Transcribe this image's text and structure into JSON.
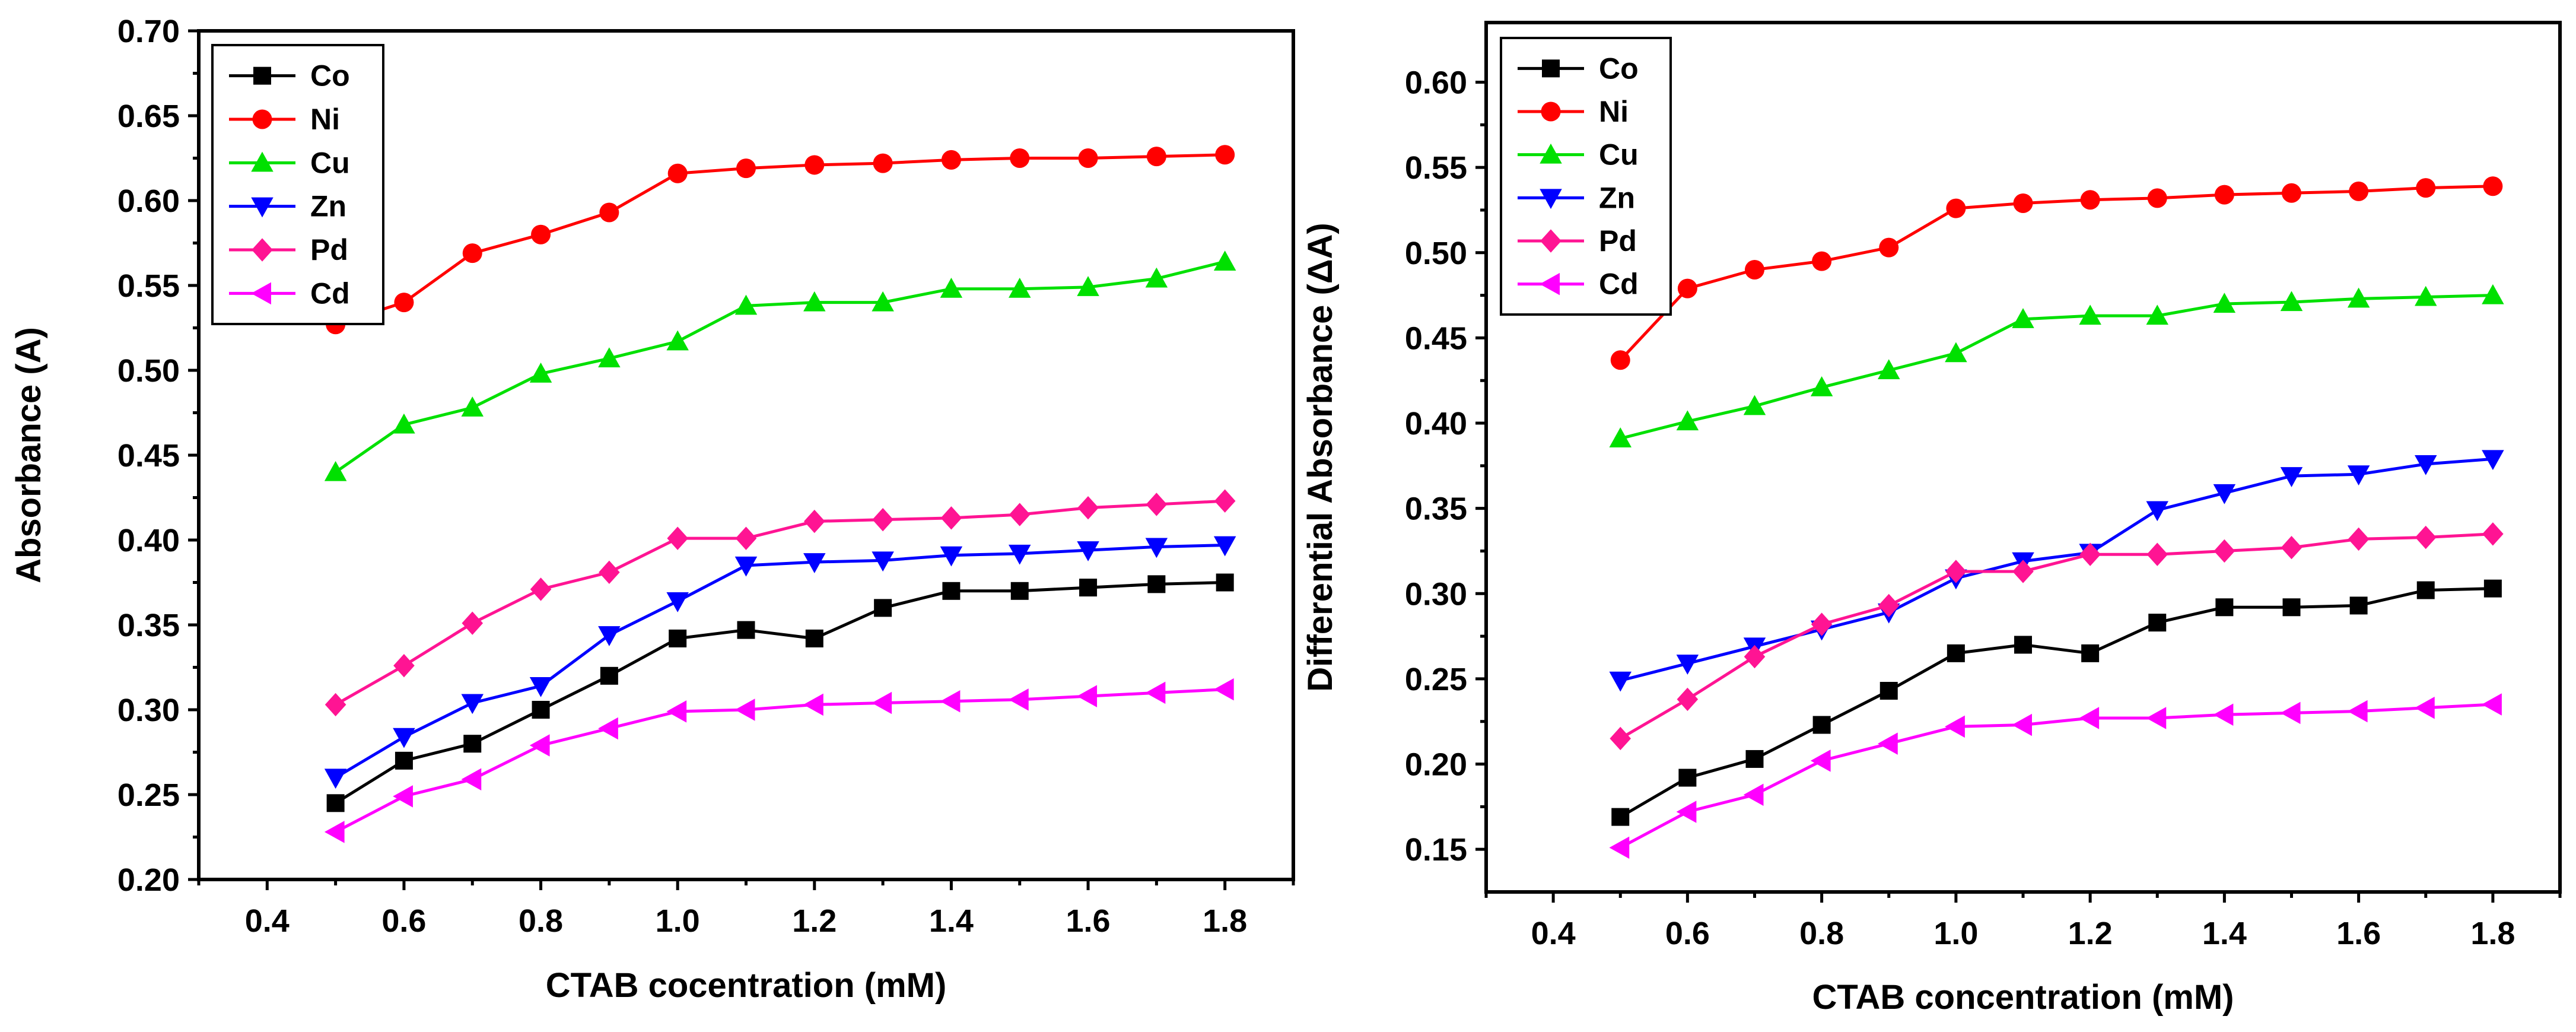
{
  "chart_data": [
    {
      "type": "line",
      "title": "",
      "xlabel": "CTAB cocentration (mM)",
      "ylabel": "Absorbance (A)",
      "xlim": [
        0.3,
        1.9
      ],
      "ylim": [
        0.2,
        0.7
      ],
      "xticks": [
        "0.4",
        "0.6",
        "0.8",
        "1.0",
        "1.2",
        "1.4",
        "1.6",
        "1.8"
      ],
      "yticks": [
        "0.20",
        "0.25",
        "0.30",
        "0.35",
        "0.40",
        "0.45",
        "0.50",
        "0.55",
        "0.60",
        "0.65",
        "0.70"
      ],
      "legend_position": "top-left",
      "x": [
        0.5,
        0.6,
        0.7,
        0.8,
        0.9,
        1.0,
        1.1,
        1.2,
        1.3,
        1.4,
        1.5,
        1.6,
        1.7,
        1.8
      ],
      "series": [
        {
          "name": "Co",
          "color": "#000000",
          "marker": "square",
          "values": [
            0.245,
            0.27,
            0.28,
            0.3,
            0.32,
            0.342,
            0.347,
            0.342,
            0.36,
            0.37,
            0.37,
            0.372,
            0.374,
            0.375
          ]
        },
        {
          "name": "Ni",
          "color": "#ff0000",
          "marker": "circle",
          "values": [
            0.527,
            0.54,
            0.569,
            0.58,
            0.593,
            0.616,
            0.619,
            0.621,
            0.622,
            0.624,
            0.625,
            0.625,
            0.626,
            0.627
          ]
        },
        {
          "name": "Cu",
          "color": "#00e000",
          "marker": "triangle-up",
          "values": [
            0.44,
            0.468,
            0.478,
            0.498,
            0.507,
            0.517,
            0.538,
            0.54,
            0.54,
            0.548,
            0.548,
            0.549,
            0.554,
            0.564
          ]
        },
        {
          "name": "Zn",
          "color": "#0000ff",
          "marker": "triangle-down",
          "values": [
            0.26,
            0.284,
            0.304,
            0.314,
            0.344,
            0.364,
            0.385,
            0.387,
            0.388,
            0.391,
            0.392,
            0.394,
            0.396,
            0.397
          ]
        },
        {
          "name": "Pd",
          "color": "#ff1493",
          "marker": "diamond",
          "values": [
            0.303,
            0.326,
            0.351,
            0.371,
            0.381,
            0.401,
            0.401,
            0.411,
            0.412,
            0.413,
            0.415,
            0.419,
            0.421,
            0.423
          ]
        },
        {
          "name": "Cd",
          "color": "#ff00ff",
          "marker": "triangle-left",
          "values": [
            0.228,
            0.249,
            0.259,
            0.279,
            0.289,
            0.299,
            0.3,
            0.303,
            0.304,
            0.305,
            0.306,
            0.308,
            0.31,
            0.312
          ]
        }
      ]
    },
    {
      "type": "line",
      "title": "",
      "xlabel": "CTAB concentration (mM)",
      "ylabel": "Differential Absorbance (ΔA)",
      "xlim": [
        0.3,
        1.9
      ],
      "ylim": [
        0.125,
        0.635
      ],
      "xticks": [
        "0.4",
        "0.6",
        "0.8",
        "1.0",
        "1.2",
        "1.4",
        "1.6",
        "1.8"
      ],
      "yticks": [
        "0.15",
        "0.20",
        "0.25",
        "0.30",
        "0.35",
        "0.40",
        "0.45",
        "0.50",
        "0.55",
        "0.60"
      ],
      "legend_position": "top-left",
      "x": [
        0.5,
        0.6,
        0.7,
        0.8,
        0.9,
        1.0,
        1.1,
        1.2,
        1.3,
        1.4,
        1.5,
        1.6,
        1.7,
        1.8
      ],
      "series": [
        {
          "name": "Co",
          "color": "#000000",
          "marker": "square",
          "values": [
            0.169,
            0.192,
            0.203,
            0.223,
            0.243,
            0.265,
            0.27,
            0.265,
            0.283,
            0.292,
            0.292,
            0.293,
            0.302,
            0.303
          ]
        },
        {
          "name": "Ni",
          "color": "#ff0000",
          "marker": "circle",
          "values": [
            0.437,
            0.479,
            0.49,
            0.495,
            0.503,
            0.526,
            0.529,
            0.531,
            0.532,
            0.534,
            0.535,
            0.536,
            0.538,
            0.539
          ]
        },
        {
          "name": "Cu",
          "color": "#00e000",
          "marker": "triangle-up",
          "values": [
            0.391,
            0.401,
            0.41,
            0.421,
            0.431,
            0.441,
            0.461,
            0.463,
            0.463,
            0.47,
            0.471,
            0.473,
            0.474,
            0.475
          ]
        },
        {
          "name": "Zn",
          "color": "#0000ff",
          "marker": "triangle-down",
          "values": [
            0.249,
            0.259,
            0.269,
            0.279,
            0.289,
            0.309,
            0.319,
            0.324,
            0.349,
            0.359,
            0.369,
            0.37,
            0.376,
            0.379
          ]
        },
        {
          "name": "Pd",
          "color": "#ff1493",
          "marker": "diamond",
          "values": [
            0.215,
            0.238,
            0.263,
            0.282,
            0.293,
            0.313,
            0.313,
            0.323,
            0.323,
            0.325,
            0.327,
            0.332,
            0.333,
            0.335
          ]
        },
        {
          "name": "Cd",
          "color": "#ff00ff",
          "marker": "triangle-left",
          "values": [
            0.151,
            0.172,
            0.182,
            0.202,
            0.212,
            0.222,
            0.223,
            0.227,
            0.227,
            0.229,
            0.23,
            0.231,
            0.233,
            0.235
          ]
        }
      ]
    }
  ]
}
